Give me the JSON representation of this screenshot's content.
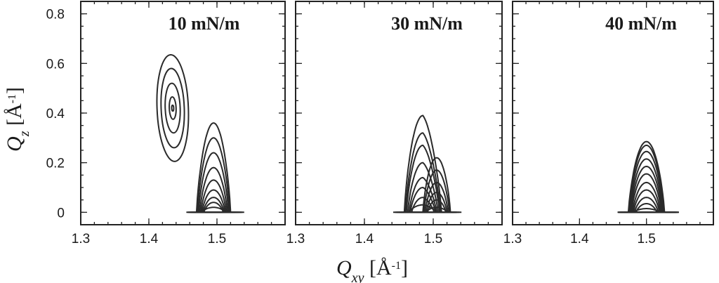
{
  "chart_data": {
    "type": "contour",
    "xlabel": {
      "symbol": "Q",
      "subscript": "xy",
      "unit_prefix": " [Å",
      "unit_exp": "-1",
      "unit_suffix": "]"
    },
    "ylabel": {
      "symbol": "Q",
      "subscript": "z",
      "unit_prefix": " [Å",
      "unit_exp": "-1",
      "unit_suffix": "]"
    },
    "xlim": [
      1.3,
      1.6
    ],
    "ylim": [
      -0.05,
      0.85
    ],
    "xticks": [
      1.3,
      1.4,
      1.5
    ],
    "xtick_labels": [
      "1.3",
      "1.4",
      "1.5"
    ],
    "yticks": [
      0,
      0.2,
      0.4,
      0.6,
      0.8
    ],
    "ytick_labels": [
      "0",
      "0.2",
      "0.4",
      "0.6",
      "0.8"
    ],
    "panels": [
      {
        "title": "10 mN/m",
        "peaks": [
          {
            "qxy": 1.435,
            "qz": 0.42,
            "contours": [
              {
                "hw": 0.023,
                "hh": 0.215,
                "tilt": 0.09
              },
              {
                "hw": 0.017,
                "hh": 0.16,
                "tilt": 0.09
              },
              {
                "hw": 0.011,
                "hh": 0.1,
                "tilt": 0.09
              },
              {
                "hw": 0.005,
                "hh": 0.045,
                "tilt": 0.09
              },
              {
                "hw": 0.0015,
                "hh": 0.012,
                "tilt": 0.09
              }
            ]
          },
          {
            "qxy": 1.495,
            "qz": 0.0,
            "levels": [
              0.36,
              0.3,
              0.24,
              0.18,
              0.13,
              0.09,
              0.06,
              0.04,
              0.02
            ],
            "hw_base": 0.025
          }
        ]
      },
      {
        "title": "30 mN/m",
        "peaks": [
          {
            "qxy": 1.485,
            "qz": 0.0,
            "shoulder": true,
            "levels": [
              0.39,
              0.32,
              0.27,
              0.2,
              0.14,
              0.1,
              0.06,
              0.03
            ],
            "hw_base": 0.027
          },
          {
            "qxy": 1.505,
            "qz": 0.0,
            "levels": [
              0.22,
              0.17,
              0.12,
              0.08,
              0.05,
              0.02
            ],
            "hw_base": 0.02
          }
        ]
      },
      {
        "title": "40 mN/m",
        "peaks": [
          {
            "qxy": 1.5,
            "qz": 0.0,
            "levels": [
              0.285,
              0.27,
              0.245,
              0.215,
              0.185,
              0.155,
              0.12,
              0.09,
              0.06,
              0.035,
              0.015
            ],
            "hw_base": 0.027
          }
        ]
      }
    ]
  }
}
